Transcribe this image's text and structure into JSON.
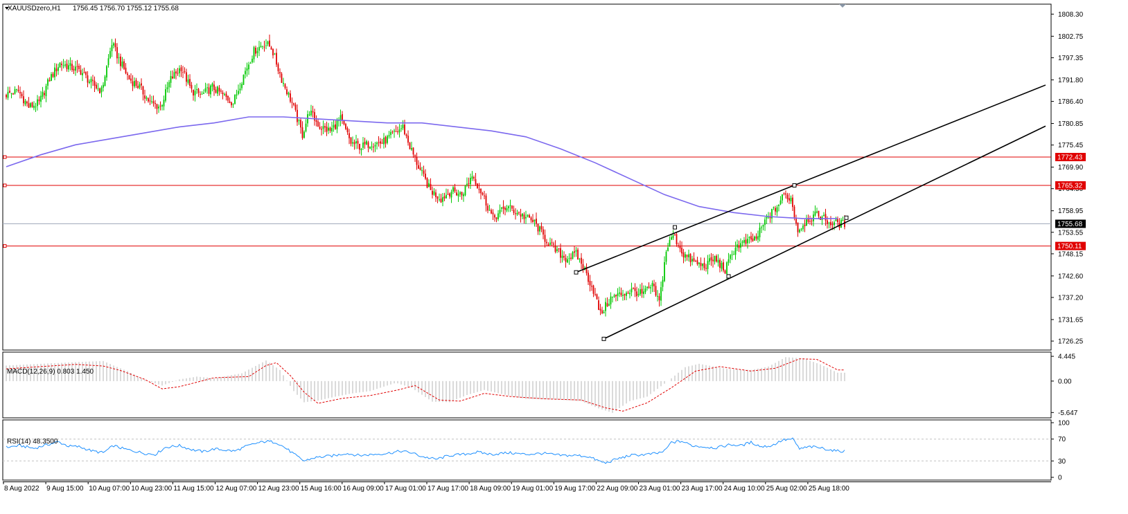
{
  "header": {
    "symbol": "XAUUSDzero,H1",
    "ohlc": "1756.45 1756.70 1755.12 1755.68"
  },
  "indicators": {
    "macd_label": "MACD(12,26,9) 0.803 1.450",
    "rsi_label": "RSI(14) 48.3500"
  },
  "colors": {
    "bull": "#00c800",
    "bear": "#e00000",
    "ma": "#7b68ee",
    "hline": "#e00000",
    "bid_line": "#a0aabb",
    "channel": "#000000",
    "macd_hist": "#b4b4b4",
    "macd_signal": "#e00000",
    "rsi": "#1e90ff"
  },
  "chart_data": [
    {
      "type": "candlestick",
      "title": "XAUUSDzero,H1",
      "y_ticks": [
        "1808.30",
        "1802.75",
        "1797.35",
        "1791.80",
        "1786.40",
        "1780.85",
        "1775.45",
        "1769.90",
        "1764.50",
        "1758.95",
        "1753.55",
        "1748.15",
        "1742.60",
        "1737.20",
        "1731.65",
        "1726.25"
      ],
      "x_ticks": [
        "8 Aug 2022",
        "9 Aug 15:00",
        "10 Aug 07:00",
        "10 Aug 23:00",
        "11 Aug 15:00",
        "12 Aug 07:00",
        "12 Aug 23:00",
        "15 Aug 16:00",
        "16 Aug 09:00",
        "17 Aug 01:00",
        "17 Aug 17:00",
        "18 Aug 09:00",
        "19 Aug 01:00",
        "19 Aug 17:00",
        "22 Aug 09:00",
        "23 Aug 01:00",
        "23 Aug 17:00",
        "24 Aug 10:00",
        "25 Aug 02:00",
        "25 Aug 18:00"
      ],
      "ylim": [
        1724.0,
        1810.8
      ],
      "levels": [
        {
          "value": 1772.43,
          "label": "1772.43"
        },
        {
          "value": 1765.32,
          "label": "1765.32"
        },
        {
          "value": 1750.11,
          "label": "1750.11"
        }
      ],
      "current_price": {
        "value": 1755.68,
        "label": "1755.68"
      },
      "close_path": [
        [
          0,
          1788
        ],
        [
          8,
          1789
        ],
        [
          14,
          1785
        ],
        [
          20,
          1786
        ],
        [
          26,
          1792
        ],
        [
          32,
          1796
        ],
        [
          38,
          1795
        ],
        [
          44,
          1794
        ],
        [
          50,
          1791
        ],
        [
          56,
          1789
        ],
        [
          62,
          1801
        ],
        [
          66,
          1797
        ],
        [
          72,
          1792
        ],
        [
          78,
          1790
        ],
        [
          84,
          1786
        ],
        [
          90,
          1785
        ],
        [
          96,
          1792
        ],
        [
          102,
          1795
        ],
        [
          108,
          1789
        ],
        [
          114,
          1788
        ],
        [
          120,
          1790
        ],
        [
          126,
          1788
        ],
        [
          132,
          1786
        ],
        [
          138,
          1793
        ],
        [
          144,
          1799
        ],
        [
          150,
          1801
        ],
        [
          154,
          1800
        ],
        [
          160,
          1792
        ],
        [
          166,
          1786
        ],
        [
          172,
          1778
        ],
        [
          176,
          1784
        ],
        [
          182,
          1780
        ],
        [
          188,
          1779
        ],
        [
          194,
          1782
        ],
        [
          200,
          1776
        ],
        [
          206,
          1775
        ],
        [
          212,
          1776
        ],
        [
          218,
          1776
        ],
        [
          224,
          1778
        ],
        [
          230,
          1780
        ],
        [
          234,
          1775
        ],
        [
          240,
          1769
        ],
        [
          246,
          1764
        ],
        [
          252,
          1762
        ],
        [
          258,
          1764
        ],
        [
          264,
          1763
        ],
        [
          270,
          1768
        ],
        [
          276,
          1763
        ],
        [
          282,
          1757
        ],
        [
          290,
          1760
        ],
        [
          298,
          1758
        ],
        [
          306,
          1756
        ],
        [
          312,
          1752
        ],
        [
          318,
          1749
        ],
        [
          324,
          1747
        ],
        [
          330,
          1748
        ],
        [
          334,
          1745
        ],
        [
          340,
          1739
        ],
        [
          344,
          1733
        ],
        [
          350,
          1737
        ],
        [
          356,
          1738
        ],
        [
          362,
          1739
        ],
        [
          368,
          1738
        ],
        [
          374,
          1740
        ],
        [
          378,
          1736
        ],
        [
          382,
          1749
        ],
        [
          386,
          1753
        ],
        [
          392,
          1748
        ],
        [
          398,
          1746
        ],
        [
          404,
          1745
        ],
        [
          410,
          1747
        ],
        [
          416,
          1744
        ],
        [
          422,
          1750
        ],
        [
          428,
          1751
        ],
        [
          434,
          1752
        ],
        [
          440,
          1757
        ],
        [
          446,
          1760
        ],
        [
          450,
          1763
        ],
        [
          454,
          1762
        ],
        [
          458,
          1754
        ],
        [
          464,
          1757
        ],
        [
          470,
          1758
        ],
        [
          476,
          1756
        ],
        [
          484,
          1755.68
        ]
      ],
      "ma_path": [
        [
          0,
          1770
        ],
        [
          20,
          1773
        ],
        [
          40,
          1775.5
        ],
        [
          60,
          1777
        ],
        [
          80,
          1778.5
        ],
        [
          100,
          1780
        ],
        [
          120,
          1781
        ],
        [
          140,
          1782.5
        ],
        [
          160,
          1782.5
        ],
        [
          180,
          1782
        ],
        [
          200,
          1781.5
        ],
        [
          220,
          1781
        ],
        [
          240,
          1781
        ],
        [
          260,
          1780
        ],
        [
          280,
          1779
        ],
        [
          300,
          1777.5
        ],
        [
          320,
          1774.5
        ],
        [
          340,
          1771
        ],
        [
          360,
          1767
        ],
        [
          380,
          1763
        ],
        [
          400,
          1760
        ],
        [
          420,
          1758.5
        ],
        [
          440,
          1757.5
        ],
        [
          460,
          1757
        ],
        [
          480,
          1757
        ]
      ],
      "channel_upper": {
        "p1": [
          329,
          1743.5
        ],
        "p2": [
          455,
          1765.32
        ],
        "extends_to": [
          600,
          1790.5
        ]
      },
      "channel_lower": {
        "p1": [
          345,
          1726.8
        ],
        "p2": [
          417,
          1742.5
        ],
        "p3": [
          485,
          1757.2
        ],
        "extends_to": [
          600,
          1780.2
        ]
      },
      "channel_anchor_points": [
        [
          329,
          1743.5
        ],
        [
          386,
          1754.8
        ],
        [
          455,
          1765.32
        ],
        [
          345,
          1726.8
        ],
        [
          417,
          1742.5
        ],
        [
          485,
          1757.2
        ]
      ]
    },
    {
      "type": "bar",
      "title": "MACD(12,26,9) 0.803 1.450",
      "y_ticks": [
        "4.445",
        "0.00",
        "-5.647"
      ],
      "ylim": [
        -6.6,
        5.2
      ],
      "main_path": [
        [
          0,
          2.8
        ],
        [
          20,
          3.1
        ],
        [
          40,
          3.4
        ],
        [
          56,
          3.6
        ],
        [
          62,
          2.8
        ],
        [
          70,
          1.8
        ],
        [
          80,
          0.2
        ],
        [
          90,
          -0.8
        ],
        [
          100,
          0.3
        ],
        [
          110,
          0.8
        ],
        [
          120,
          0.5
        ],
        [
          136,
          1.4
        ],
        [
          150,
          3.7
        ],
        [
          158,
          2.0
        ],
        [
          166,
          -1.8
        ],
        [
          172,
          -3.8
        ],
        [
          180,
          -3.5
        ],
        [
          190,
          -2.8
        ],
        [
          200,
          -2.2
        ],
        [
          210,
          -1.8
        ],
        [
          225,
          -0.3
        ],
        [
          234,
          -1.2
        ],
        [
          246,
          -3.7
        ],
        [
          256,
          -3.8
        ],
        [
          266,
          -2.5
        ],
        [
          276,
          -1.6
        ],
        [
          290,
          -2.6
        ],
        [
          300,
          -3.2
        ],
        [
          316,
          -3.3
        ],
        [
          332,
          -3.6
        ],
        [
          342,
          -4.9
        ],
        [
          350,
          -5.7
        ],
        [
          360,
          -3.6
        ],
        [
          370,
          -2.8
        ],
        [
          382,
          0.0
        ],
        [
          392,
          2.5
        ],
        [
          400,
          3.1
        ],
        [
          416,
          2.2
        ],
        [
          430,
          2.0
        ],
        [
          440,
          2.6
        ],
        [
          450,
          4.3
        ],
        [
          460,
          4.1
        ],
        [
          470,
          3.0
        ],
        [
          480,
          1.5
        ]
      ],
      "signal_path": [
        [
          0,
          2.2
        ],
        [
          20,
          2.6
        ],
        [
          40,
          3.0
        ],
        [
          56,
          2.7
        ],
        [
          66,
          1.9
        ],
        [
          80,
          0.3
        ],
        [
          90,
          -1.4
        ],
        [
          100,
          -1.0
        ],
        [
          120,
          0.6
        ],
        [
          140,
          0.8
        ],
        [
          150,
          2.8
        ],
        [
          156,
          3.3
        ],
        [
          164,
          1.0
        ],
        [
          172,
          -2.0
        ],
        [
          180,
          -4.0
        ],
        [
          194,
          -3.1
        ],
        [
          210,
          -2.6
        ],
        [
          226,
          -1.6
        ],
        [
          236,
          -0.8
        ],
        [
          250,
          -3.4
        ],
        [
          262,
          -3.6
        ],
        [
          276,
          -2.2
        ],
        [
          292,
          -2.8
        ],
        [
          312,
          -3.2
        ],
        [
          332,
          -3.4
        ],
        [
          346,
          -4.8
        ],
        [
          356,
          -5.4
        ],
        [
          370,
          -3.9
        ],
        [
          384,
          -1.2
        ],
        [
          398,
          1.8
        ],
        [
          412,
          2.6
        ],
        [
          430,
          1.8
        ],
        [
          444,
          2.3
        ],
        [
          458,
          4.0
        ],
        [
          468,
          3.9
        ],
        [
          480,
          2.0
        ]
      ]
    },
    {
      "type": "line",
      "title": "RSI(14) 48.3500",
      "y_ticks": [
        "100",
        "70",
        "30",
        "0"
      ],
      "ylim": [
        0,
        100
      ],
      "levels": [
        70,
        30
      ],
      "path": [
        [
          0,
          55
        ],
        [
          8,
          58
        ],
        [
          16,
          53
        ],
        [
          24,
          60
        ],
        [
          30,
          65
        ],
        [
          36,
          57
        ],
        [
          42,
          56
        ],
        [
          50,
          48
        ],
        [
          56,
          45
        ],
        [
          62,
          58
        ],
        [
          68,
          52
        ],
        [
          74,
          48
        ],
        [
          80,
          44
        ],
        [
          86,
          42
        ],
        [
          92,
          55
        ],
        [
          100,
          58
        ],
        [
          108,
          50
        ],
        [
          114,
          47
        ],
        [
          120,
          52
        ],
        [
          126,
          50
        ],
        [
          132,
          48
        ],
        [
          138,
          56
        ],
        [
          144,
          62
        ],
        [
          150,
          66
        ],
        [
          156,
          64
        ],
        [
          162,
          52
        ],
        [
          168,
          38
        ],
        [
          172,
          30
        ],
        [
          178,
          36
        ],
        [
          184,
          38
        ],
        [
          190,
          40
        ],
        [
          196,
          44
        ],
        [
          204,
          40
        ],
        [
          212,
          42
        ],
        [
          220,
          44
        ],
        [
          228,
          48
        ],
        [
          234,
          45
        ],
        [
          240,
          38
        ],
        [
          248,
          33
        ],
        [
          256,
          40
        ],
        [
          264,
          42
        ],
        [
          272,
          46
        ],
        [
          280,
          42
        ],
        [
          290,
          45
        ],
        [
          300,
          42
        ],
        [
          310,
          44
        ],
        [
          320,
          40
        ],
        [
          330,
          40
        ],
        [
          336,
          38
        ],
        [
          342,
          30
        ],
        [
          346,
          26
        ],
        [
          352,
          33
        ],
        [
          360,
          40
        ],
        [
          370,
          42
        ],
        [
          376,
          44
        ],
        [
          380,
          48
        ],
        [
          384,
          64
        ],
        [
          390,
          66
        ],
        [
          396,
          58
        ],
        [
          402,
          56
        ],
        [
          410,
          54
        ],
        [
          418,
          60
        ],
        [
          424,
          58
        ],
        [
          430,
          64
        ],
        [
          436,
          56
        ],
        [
          442,
          58
        ],
        [
          448,
          68
        ],
        [
          454,
          70
        ],
        [
          458,
          52
        ],
        [
          464,
          56
        ],
        [
          470,
          54
        ],
        [
          476,
          50
        ],
        [
          480,
          48
        ]
      ]
    }
  ]
}
